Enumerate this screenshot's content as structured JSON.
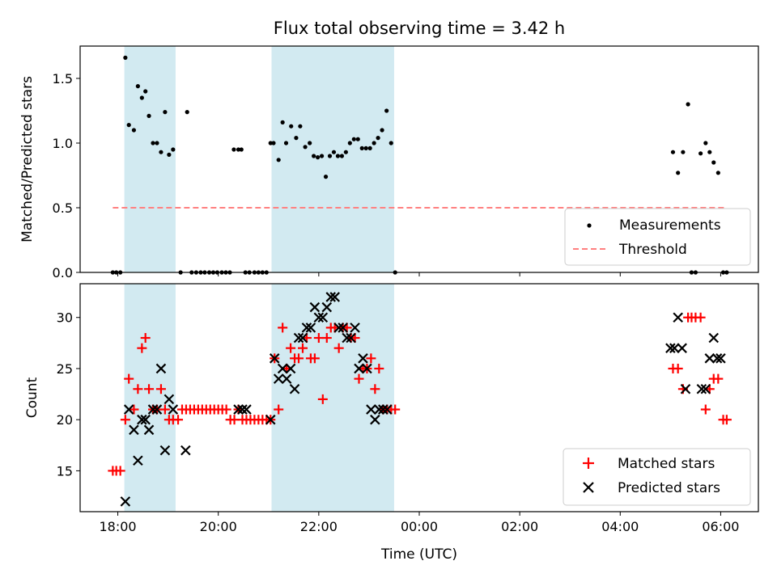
{
  "title": "Flux total observing time = 3.42 h",
  "colors": {
    "shade": "#add8e6",
    "measurement": "#000000",
    "threshold": "#ff8080",
    "matched": "#ff0000",
    "predicted": "#000000"
  },
  "chart_data": [
    {
      "type": "scatter",
      "ylabel": "Matched/Predicted stars",
      "ylim": [
        0,
        1.75
      ],
      "yticks": [
        0.0,
        0.5,
        1.0,
        1.5
      ],
      "ytick_labels": [
        "0.0",
        "0.5",
        "1.0",
        "1.5"
      ],
      "xlim": [
        -0.75,
        12.75
      ],
      "legend_position": "lower-right",
      "shaded_intervals": [
        [
          0.13,
          1.15
        ],
        [
          3.06,
          5.5
        ]
      ],
      "series": [
        {
          "name": "Measurements",
          "x": [
            -0.1,
            -0.03,
            0.05,
            0.15,
            0.22,
            0.32,
            0.4,
            0.48,
            0.55,
            0.62,
            0.7,
            0.78,
            0.86,
            0.94,
            1.02,
            1.1,
            1.25,
            1.38,
            1.47,
            1.56,
            1.65,
            1.73,
            1.82,
            1.9,
            1.98,
            2.07,
            2.15,
            2.23,
            2.31,
            2.4,
            2.46,
            2.54,
            2.62,
            2.72,
            2.8,
            2.88,
            2.96,
            3.04,
            3.1,
            3.2,
            3.28,
            3.35,
            3.45,
            3.55,
            3.63,
            3.73,
            3.82,
            3.9,
            3.98,
            4.06,
            4.14,
            4.22,
            4.3,
            4.38,
            4.46,
            4.54,
            4.62,
            4.7,
            4.78,
            4.86,
            4.94,
            5.02,
            5.1,
            5.18,
            5.26,
            5.35,
            5.44,
            5.52,
            11.05,
            11.15,
            11.25,
            11.35,
            11.42,
            11.5,
            11.6,
            11.7,
            11.78,
            11.86,
            11.95,
            12.05,
            12.12
          ],
          "y": [
            0,
            0,
            0,
            1.66,
            1.14,
            1.1,
            1.44,
            1.35,
            1.4,
            1.21,
            1.0,
            1.0,
            0.93,
            1.24,
            0.91,
            0.95,
            0,
            1.24,
            0,
            0,
            0,
            0,
            0,
            0,
            0,
            0,
            0,
            0,
            0.95,
            0.95,
            0.95,
            0,
            0,
            0,
            0,
            0,
            0,
            1.0,
            1.0,
            0.87,
            1.16,
            1.0,
            1.13,
            1.04,
            1.13,
            0.97,
            1.0,
            0.9,
            0.89,
            0.9,
            0.74,
            0.9,
            0.93,
            0.9,
            0.9,
            0.93,
            1.0,
            1.03,
            1.03,
            0.96,
            0.96,
            0.96,
            1.0,
            1.04,
            1.1,
            1.25,
            1.0,
            0,
            0.93,
            0.77,
            0.93,
            1.3,
            0,
            0,
            0.92,
            1.0,
            0.93,
            0.85,
            0.77,
            0,
            0
          ]
        },
        {
          "name": "Threshold",
          "style": "dashed",
          "x": [
            -0.1,
            12.1
          ],
          "y": [
            0.5,
            0.5
          ]
        }
      ]
    },
    {
      "type": "scatter",
      "xlabel": "Time (UTC)",
      "ylabel": "Count",
      "ylim": [
        11,
        33.3
      ],
      "yticks": [
        15,
        20,
        25,
        30
      ],
      "ytick_labels": [
        "15",
        "20",
        "25",
        "30"
      ],
      "xlim": [
        -0.75,
        12.75
      ],
      "xticks": [
        0,
        2,
        4,
        6,
        8,
        10,
        12
      ],
      "xtick_labels": [
        "18:00",
        "20:00",
        "22:00",
        "00:00",
        "02:00",
        "04:00",
        "06:00"
      ],
      "legend_position": "lower-right",
      "shaded_intervals": [
        [
          0.13,
          1.15
        ],
        [
          3.06,
          5.5
        ]
      ],
      "series": [
        {
          "name": "Matched stars",
          "marker": "plus",
          "x": [
            -0.1,
            -0.03,
            0.05,
            0.15,
            0.22,
            0.32,
            0.4,
            0.48,
            0.55,
            0.62,
            0.7,
            0.78,
            0.86,
            0.94,
            1.02,
            1.1,
            1.2,
            1.28,
            1.36,
            1.44,
            1.52,
            1.6,
            1.68,
            1.76,
            1.84,
            1.92,
            2.0,
            2.08,
            2.16,
            2.24,
            2.32,
            2.4,
            2.48,
            2.56,
            2.64,
            2.72,
            2.8,
            2.88,
            2.96,
            3.04,
            3.12,
            3.2,
            3.28,
            3.36,
            3.44,
            3.52,
            3.6,
            3.68,
            3.76,
            3.84,
            3.92,
            4.0,
            4.08,
            4.16,
            4.24,
            4.32,
            4.4,
            4.48,
            4.56,
            4.64,
            4.72,
            4.8,
            4.88,
            4.96,
            5.04,
            5.12,
            5.2,
            5.28,
            5.36,
            5.44,
            5.52,
            11.05,
            11.15,
            11.25,
            11.35,
            11.42,
            11.5,
            11.6,
            11.7,
            11.78,
            11.86,
            11.95,
            12.05,
            12.12
          ],
          "y": [
            15,
            15,
            15,
            20,
            24,
            21,
            23,
            27,
            28,
            23,
            21,
            21,
            23,
            21,
            20,
            20,
            20,
            21,
            21,
            21,
            21,
            21,
            21,
            21,
            21,
            21,
            21,
            21,
            21,
            20,
            20,
            21,
            20,
            20,
            20,
            20,
            20,
            20,
            20,
            20,
            26,
            21,
            29,
            25,
            27,
            26,
            26,
            27,
            28,
            26,
            26,
            28,
            22,
            28,
            29,
            29,
            27,
            29,
            29,
            28,
            28,
            24,
            25,
            25,
            26,
            23,
            25,
            21,
            21,
            21,
            21,
            25,
            25,
            23,
            30,
            30,
            30,
            30,
            21,
            23,
            24,
            24,
            20,
            20
          ],
          "note": ""
        },
        {
          "name": "Predicted stars",
          "marker": "x",
          "x": [
            0.15,
            0.22,
            0.32,
            0.4,
            0.48,
            0.55,
            0.62,
            0.7,
            0.78,
            0.86,
            0.94,
            1.02,
            1.1,
            1.35,
            2.4,
            2.48,
            2.56,
            3.04,
            3.12,
            3.2,
            3.28,
            3.36,
            3.44,
            3.52,
            3.6,
            3.68,
            3.76,
            3.84,
            3.92,
            4.0,
            4.08,
            4.16,
            4.24,
            4.32,
            4.4,
            4.48,
            4.56,
            4.64,
            4.72,
            4.8,
            4.88,
            4.96,
            5.04,
            5.12,
            5.2,
            5.28,
            5.36,
            11.0,
            11.08,
            11.15,
            11.23,
            11.3,
            11.62,
            11.7,
            11.78,
            11.86,
            11.93,
            12.0
          ],
          "y": [
            12,
            21,
            19,
            16,
            20,
            20,
            19,
            21,
            21,
            25,
            17,
            22,
            21,
            17,
            21,
            21,
            21,
            20,
            26,
            24,
            25,
            24,
            25,
            23,
            28,
            28,
            29,
            29,
            31,
            30,
            30,
            31,
            32,
            32,
            29,
            29,
            28,
            28,
            29,
            25,
            26,
            25,
            21,
            20,
            21,
            21,
            21,
            27,
            27,
            30,
            27,
            23,
            23,
            23,
            26,
            28,
            26,
            26
          ],
          "note": ""
        }
      ]
    }
  ]
}
